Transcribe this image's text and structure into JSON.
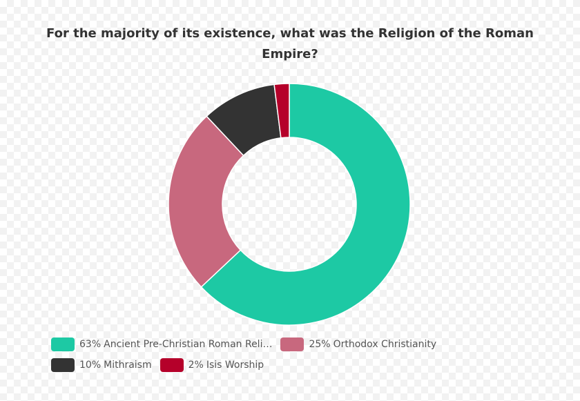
{
  "chart_data": {
    "type": "donut",
    "title": "For the majority of its existence, what was the Religion of the Roman Empire?",
    "series": [
      {
        "name": "Ancient Pre-Christian Roman Reli…",
        "color": "#1dc9a4",
        "values": [
          63
        ],
        "value_labels": [
          "63%"
        ]
      },
      {
        "name": "Orthodox Christianity",
        "color": "#c8687e",
        "values": [
          25
        ],
        "value_labels": [
          "25%"
        ]
      },
      {
        "name": "Mithraism",
        "color": "#333333",
        "values": [
          10
        ],
        "value_labels": [
          "10%"
        ]
      },
      {
        "name": "Isis Worship",
        "color": "#b5002a",
        "values": [
          2
        ],
        "value_labels": [
          "2%"
        ]
      }
    ]
  }
}
